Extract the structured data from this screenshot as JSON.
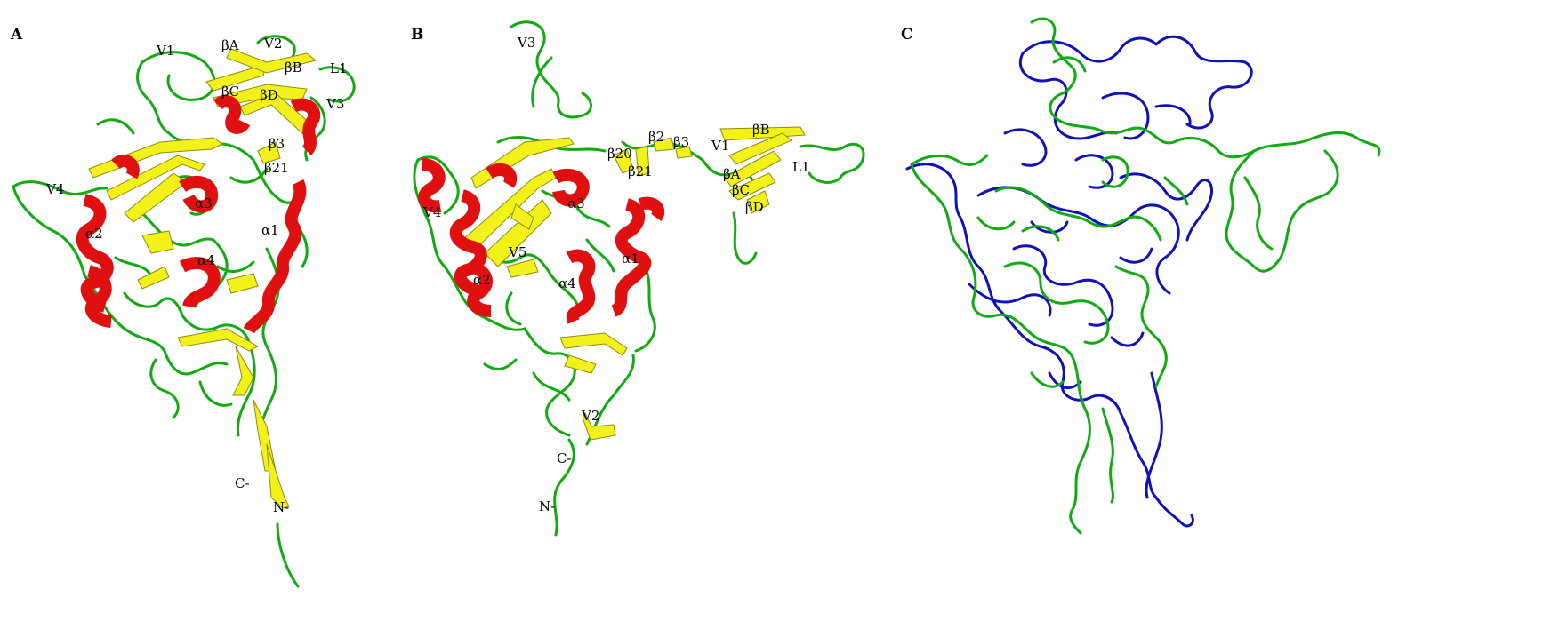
{
  "panels": [
    {
      "letter": "A",
      "labels": {
        "V1": "V1",
        "betaA": "βA",
        "V2": "V2",
        "betaB": "βB",
        "L1": "L1",
        "betaC": "βC",
        "betaD": "βD",
        "V3": "V3",
        "beta3": "β3",
        "beta21": "β21",
        "V4": "V4",
        "alpha3": "α3",
        "alpha2": "α2",
        "alpha4": "α4",
        "alpha1": "α1",
        "C": "C-",
        "N": "N-"
      }
    },
    {
      "letter": "B",
      "labels": {
        "V3": "V3",
        "beta20": "β20",
        "beta2": "β2",
        "beta3": "β3",
        "V1": "V1",
        "betaB": "βB",
        "beta21": "β21",
        "betaA": "βA",
        "L1": "L1",
        "betaC": "βC",
        "betaD": "βD",
        "V4": "V4",
        "alpha3": "α3",
        "V5": "V5",
        "alpha1": "α1",
        "alpha2": "α2",
        "alpha4": "α4",
        "V2": "V2",
        "C": "C-",
        "N": "N-"
      }
    },
    {
      "letter": "C",
      "labels": {}
    }
  ],
  "colors": {
    "loop": "#11aa11",
    "strand": "#f2f21a",
    "helix": "#e01010",
    "overlay": "#1111bb"
  }
}
